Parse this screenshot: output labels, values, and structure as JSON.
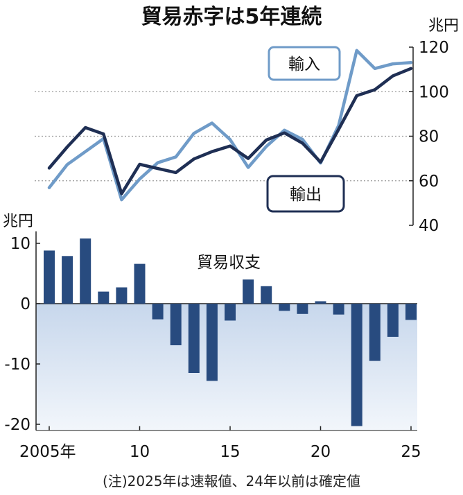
{
  "title": "貿易赤字は5年連続",
  "note": "(注)2025年は速報値、24年以前は確定値",
  "colors": {
    "exports": "#1f2f54",
    "imports": "#6f9bc8",
    "balance_bar": "#284b7f",
    "negative_fill_top": "#c7d7ec",
    "negative_fill_bottom": "#f2f6fb",
    "gridline": "#9a9a9a"
  },
  "x_tick_labels": [
    "2005年",
    "10",
    "15",
    "20",
    "25"
  ],
  "chart_data": [
    {
      "type": "line",
      "unit": "兆円",
      "x": [
        2005,
        2006,
        2007,
        2008,
        2009,
        2010,
        2011,
        2012,
        2013,
        2014,
        2015,
        2016,
        2017,
        2018,
        2019,
        2020,
        2021,
        2022,
        2023,
        2024,
        2025
      ],
      "ylim": [
        40,
        120
      ],
      "y_ticks": [
        "40",
        "60",
        "80",
        "100",
        "120"
      ],
      "y_tick_values": [
        40,
        60,
        80,
        100,
        120
      ],
      "grid": "dotted",
      "series": [
        {
          "name": "輸出",
          "values": [
            65.7,
            75.2,
            83.9,
            81.0,
            54.2,
            67.4,
            65.5,
            63.7,
            69.8,
            73.1,
            75.6,
            70.0,
            78.3,
            81.5,
            76.9,
            68.4,
            83.1,
            98.2,
            100.9,
            107.1,
            110.4
          ]
        },
        {
          "name": "輸入",
          "values": [
            56.9,
            67.3,
            73.1,
            78.9,
            51.5,
            60.8,
            68.1,
            70.7,
            81.3,
            85.9,
            78.5,
            66.0,
            75.4,
            82.7,
            78.6,
            68.0,
            84.9,
            118.5,
            110.4,
            112.5,
            113.1
          ]
        }
      ]
    },
    {
      "type": "bar",
      "title": "貿易収支",
      "unit": "兆円",
      "x": [
        2005,
        2006,
        2007,
        2008,
        2009,
        2010,
        2011,
        2012,
        2013,
        2014,
        2015,
        2016,
        2017,
        2018,
        2019,
        2020,
        2021,
        2022,
        2023,
        2024,
        2025
      ],
      "values": [
        8.8,
        7.9,
        10.8,
        2.0,
        2.7,
        6.6,
        -2.6,
        -6.9,
        -11.5,
        -12.8,
        -2.8,
        4.0,
        2.9,
        -1.2,
        -1.7,
        0.4,
        -1.8,
        -20.3,
        -9.5,
        -5.5,
        -2.7
      ],
      "ylim": [
        -21,
        12
      ],
      "y_ticks": [
        "10",
        "0",
        "-10",
        "-20"
      ],
      "y_tick_values": [
        10,
        0,
        -10,
        -20
      ]
    }
  ]
}
